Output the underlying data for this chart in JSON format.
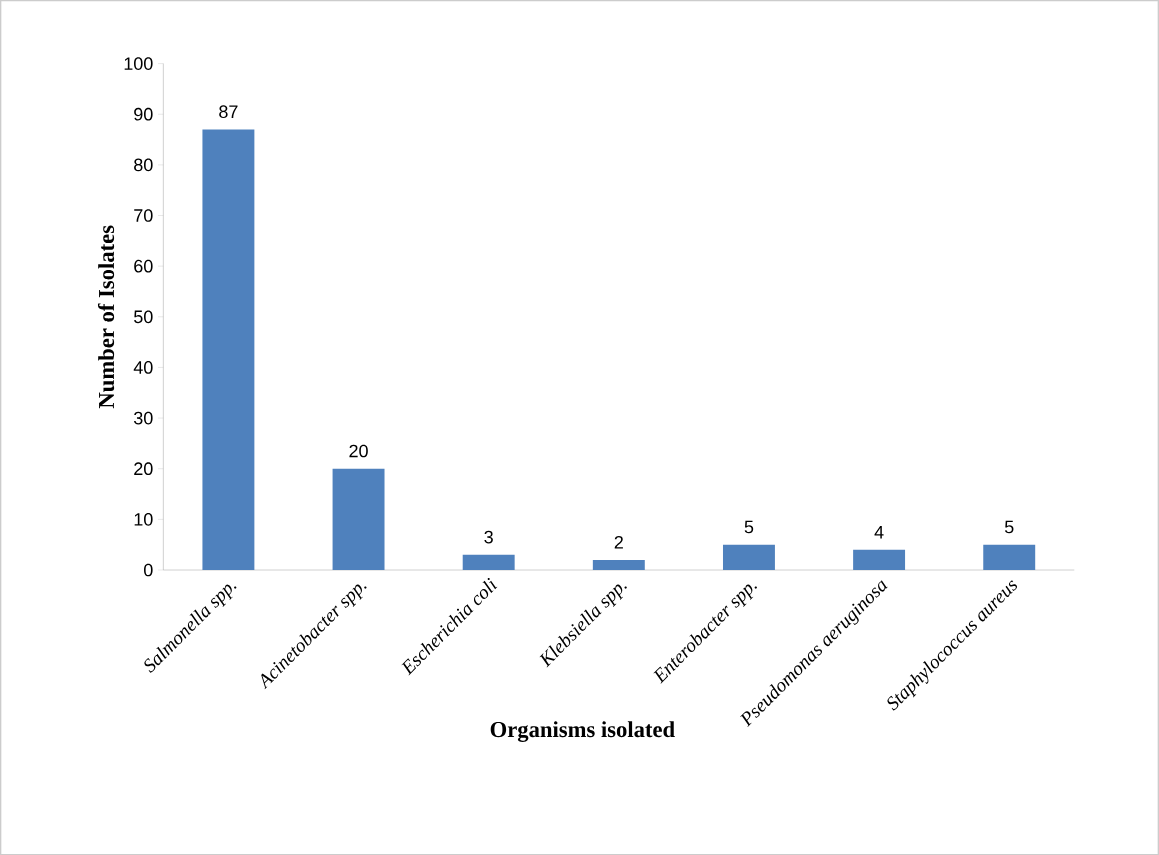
{
  "chart_data": {
    "type": "bar",
    "xlabel": "Organisms isolated",
    "ylabel": "Number of Isolates",
    "categories": [
      "*Salmonella spp.*",
      "*Acinetobacter spp.*",
      "*Escherichia coli*",
      "*Klebsiella spp.*",
      "*Enterobacter spp.*",
      "*Pseudomonas aeruginosa*",
      "*Staphylococcus aureus*"
    ],
    "values": [
      87,
      20,
      3,
      2,
      5,
      4,
      5
    ],
    "color": "#4f81bd",
    "ylim": [
      0,
      100
    ],
    "yticks": [
      0,
      10,
      20,
      30,
      40,
      50,
      60,
      70,
      80,
      90,
      100
    ],
    "data_labels": true,
    "grid": false
  }
}
